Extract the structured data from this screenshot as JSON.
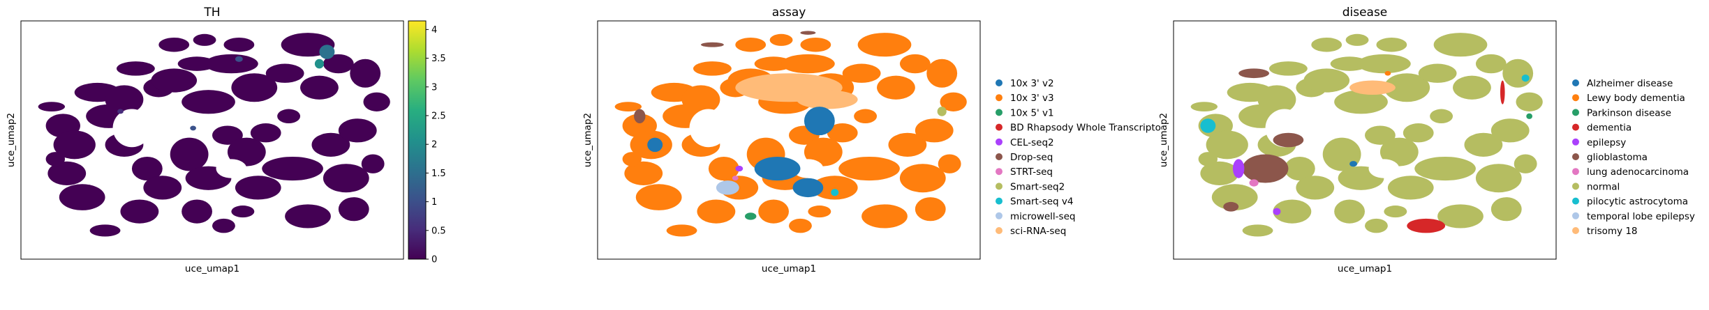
{
  "chart_data": [
    {
      "type": "scatter",
      "title": "TH",
      "xlabel": "uce_umap1",
      "ylabel": "uce_umap2",
      "colorbar": {
        "colormap": "viridis",
        "range": [
          0,
          4.15
        ],
        "ticks": [
          "0",
          "0.5",
          "1",
          "1.5",
          "2",
          "2.5",
          "3",
          "3.5",
          "4"
        ]
      },
      "dominant_value": 0,
      "high_value_regions": [
        "top-right",
        "upper-left",
        "center"
      ]
    },
    {
      "type": "scatter",
      "title": "assay",
      "xlabel": "uce_umap1",
      "ylabel": "uce_umap2",
      "legend_position": "right",
      "categories": [
        {
          "label": "10x 3' v2",
          "color": "#1f77b4"
        },
        {
          "label": "10x 3' v3",
          "color": "#ff7f0e"
        },
        {
          "label": "10x 5' v1",
          "color": "#279e68"
        },
        {
          "label": "BD Rhapsody Whole Transcripto",
          "color": "#d62728"
        },
        {
          "label": "CEL-seq2",
          "color": "#aa40fc"
        },
        {
          "label": "Drop-seq",
          "color": "#8c564b"
        },
        {
          "label": "STRT-seq",
          "color": "#e377c2"
        },
        {
          "label": "Smart-seq2",
          "color": "#b5bd61"
        },
        {
          "label": "Smart-seq v4",
          "color": "#17becf"
        },
        {
          "label": "microwell-seq",
          "color": "#aec7e8"
        },
        {
          "label": "sci-RNA-seq",
          "color": "#ffbb78"
        }
      ]
    },
    {
      "type": "scatter",
      "title": "disease",
      "xlabel": "uce_umap1",
      "ylabel": "uce_umap2",
      "legend_position": "right",
      "categories": [
        {
          "label": "Alzheimer disease",
          "color": "#1f77b4"
        },
        {
          "label": "Lewy body dementia",
          "color": "#ff7f0e"
        },
        {
          "label": "Parkinson disease",
          "color": "#279e68"
        },
        {
          "label": "dementia",
          "color": "#d62728"
        },
        {
          "label": "epilepsy",
          "color": "#aa40fc"
        },
        {
          "label": "glioblastoma",
          "color": "#8c564b"
        },
        {
          "label": "lung adenocarcinoma",
          "color": "#e377c2"
        },
        {
          "label": "normal",
          "color": "#b5bd61"
        },
        {
          "label": "pilocytic astrocytoma",
          "color": "#17becf"
        },
        {
          "label": "temporal lobe epilepsy",
          "color": "#aec7e8"
        },
        {
          "label": "trisomy 18",
          "color": "#ffbb78"
        }
      ]
    }
  ]
}
